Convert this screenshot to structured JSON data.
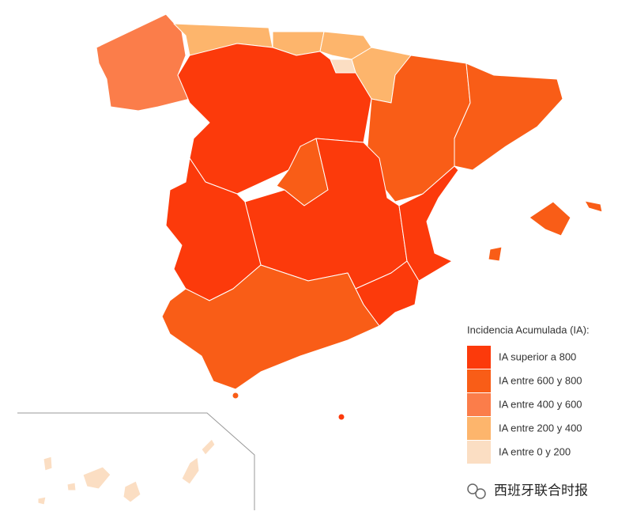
{
  "legend": {
    "title": "Incidencia Acumulada (IA):",
    "items": [
      {
        "label": "IA superior a 800",
        "color": "#fc3a0b"
      },
      {
        "label": "IA entre 600 y 800",
        "color": "#f95d17"
      },
      {
        "label": "IA entre 400 y 600",
        "color": "#fb7d4a"
      },
      {
        "label": "IA entre 200 y 400",
        "color": "#fdb56c"
      },
      {
        "label": "IA entre 0 y 200",
        "color": "#fbdec3"
      }
    ]
  },
  "watermark": "西班牙联合时报"
}
